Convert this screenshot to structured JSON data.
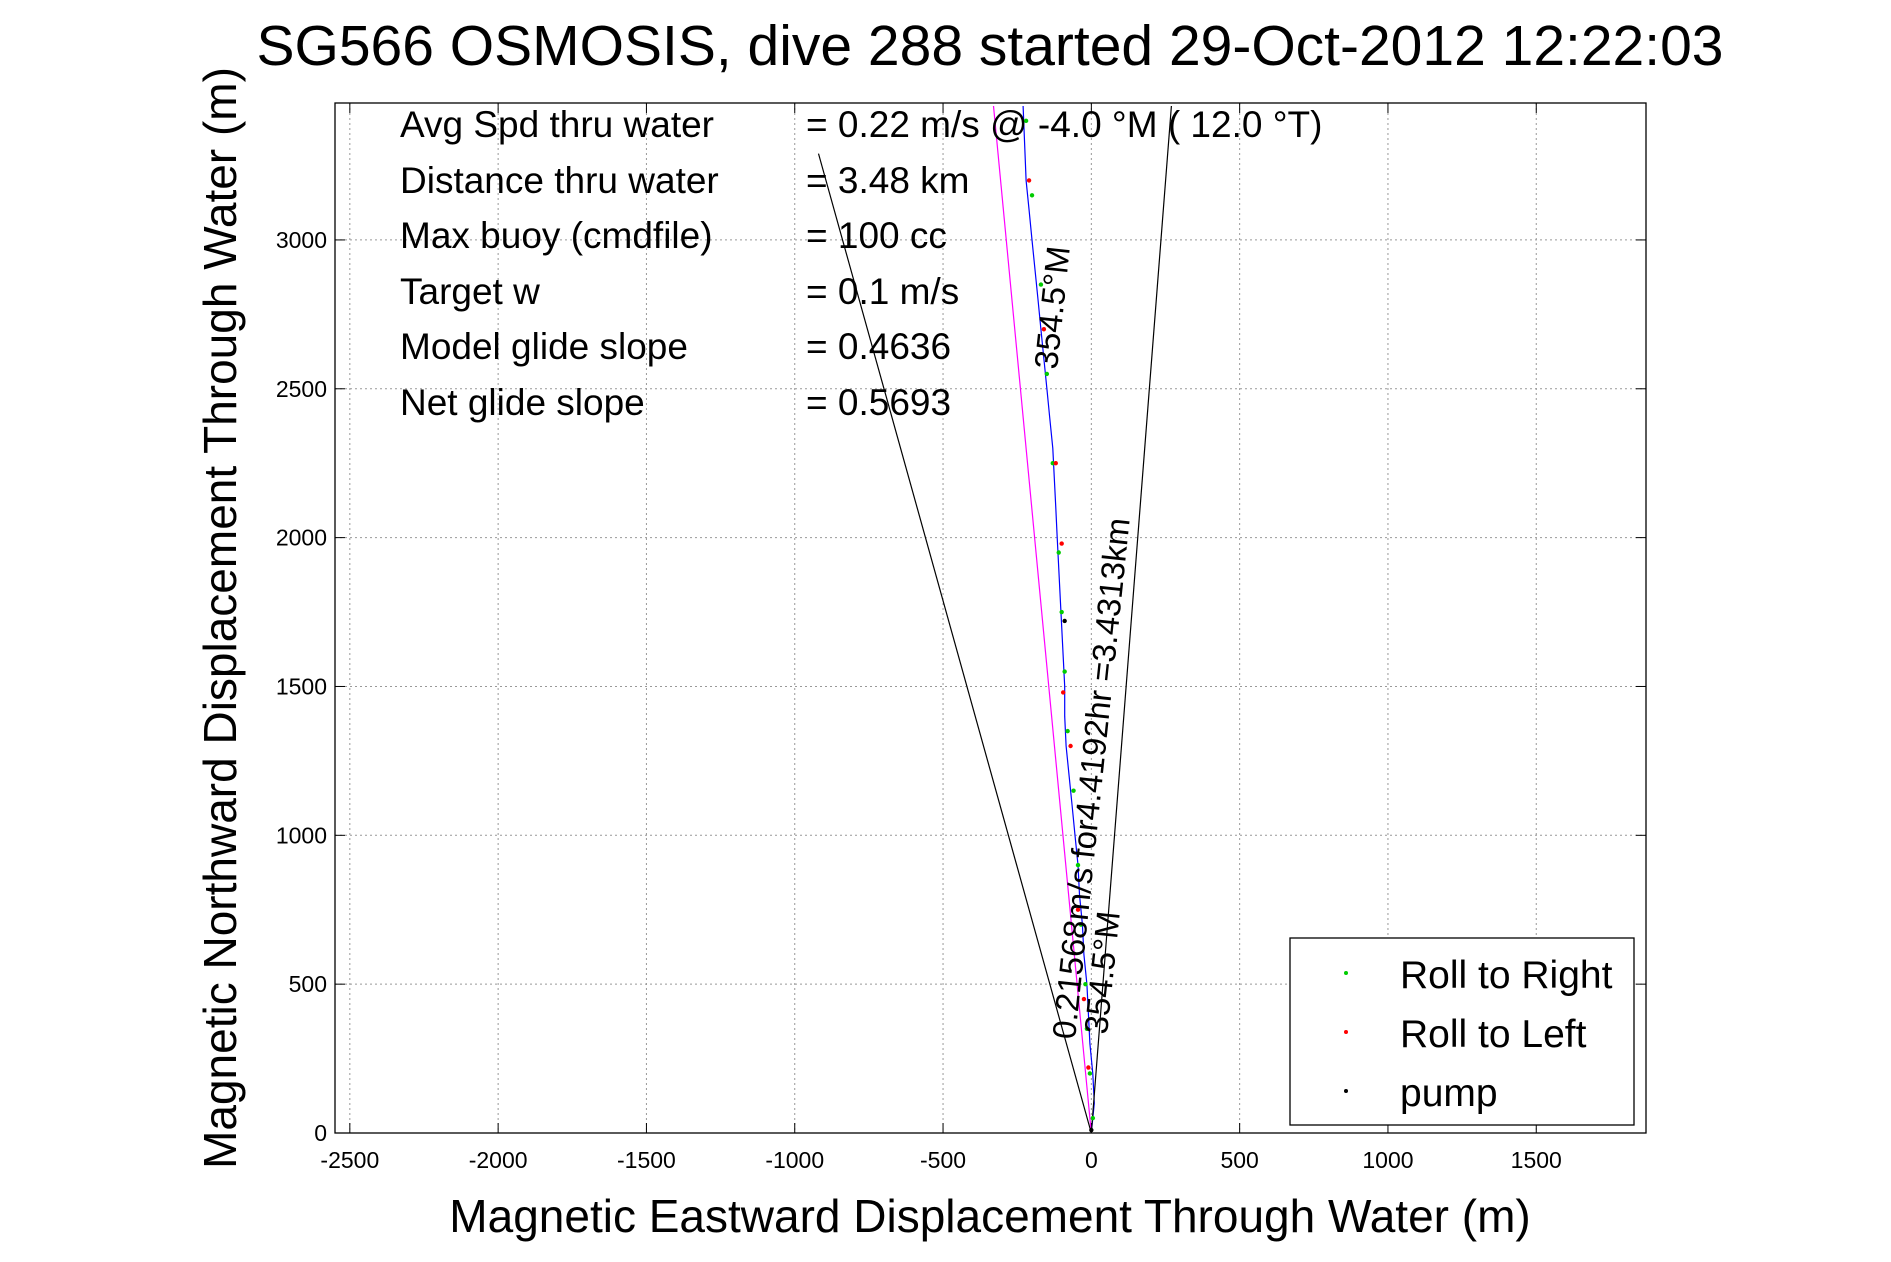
{
  "chart_data": {
    "type": "line",
    "title": "SG566 OSMOSIS, dive 288 started 29-Oct-2012 12:22:03",
    "xlabel": "Magnetic Eastward Displacement Through Water (m)",
    "ylabel": "Magnetic Northward Displacement Through Water (m)",
    "xlim": [
      -2550,
      1870
    ],
    "ylim": [
      0,
      3460
    ],
    "xticks": [
      -2500,
      -2000,
      -1500,
      -1000,
      -500,
      0,
      500,
      1000,
      1500
    ],
    "yticks": [
      0,
      500,
      1000,
      1500,
      2000,
      2500,
      3000
    ],
    "grid": true,
    "info": [
      {
        "label": "Avg Spd thru water",
        "value": "=  0.22 m/s @  -4.0 °M ( 12.0 °T)"
      },
      {
        "label": "Distance thru water",
        "value": "=  3.48 km"
      },
      {
        "label": "Max buoy (cmdfile)",
        "value": "= 100 cc"
      },
      {
        "label": "Target w",
        "value": "= 0.1 m/s"
      },
      {
        "label": "Model glide slope",
        "value": "= 0.4636"
      },
      {
        "label": "Net glide slope",
        "value": "= 0.5693"
      }
    ],
    "annotations": [
      "0.21568m/s for4.4192hr =3.4313km",
      "354.5°M",
      "354.5°M"
    ],
    "legend": {
      "placement": "bottom-right",
      "entries": [
        {
          "name": "Roll to Right",
          "color": "#00cc00"
        },
        {
          "name": "Roll to Left",
          "color": "#ff0000"
        },
        {
          "name": "pump",
          "color": "#000000"
        }
      ]
    },
    "series": [
      {
        "color": "#0000ff",
        "x": [
          0,
          10,
          5,
          -5,
          -10,
          -15,
          -25,
          -30,
          -40,
          -45,
          -55,
          -65,
          -75,
          -85,
          -90,
          -90,
          -95,
          -100,
          -105,
          -110,
          -115,
          -120,
          -125,
          -130,
          -140,
          -150,
          -160,
          -170,
          -180,
          -190,
          -200,
          -210,
          -220,
          -230
        ],
        "y": [
          0,
          100,
          200,
          300,
          400,
          500,
          600,
          700,
          800,
          900,
          1000,
          1100,
          1200,
          1300,
          1400,
          1500,
          1600,
          1700,
          1800,
          1900,
          2000,
          2100,
          2200,
          2300,
          2400,
          2500,
          2600,
          2700,
          2800,
          2900,
          3000,
          3100,
          3200,
          3450
        ]
      },
      {
        "color": "#ff00ff",
        "x": [
          0,
          -330
        ],
        "y": [
          0,
          3450
        ]
      },
      {
        "color": "#000000",
        "x": [
          0,
          270
        ],
        "y": [
          0,
          3450
        ]
      },
      {
        "color": "#000000",
        "x": [
          0,
          -920
        ],
        "y": [
          0,
          3290
        ]
      },
      {
        "color": "#00cc00",
        "type": "scatter",
        "x": [
          5,
          -5,
          -15,
          -20,
          -35,
          -45,
          -60,
          -80,
          -90,
          -100,
          -110,
          -130,
          -150,
          -170,
          -200,
          -220
        ],
        "y": [
          50,
          200,
          350,
          500,
          700,
          900,
          1150,
          1350,
          1550,
          1750,
          1950,
          2250,
          2550,
          2850,
          3150,
          3400
        ]
      },
      {
        "color": "#ff0000",
        "type": "scatter",
        "x": [
          -10,
          -25,
          -45,
          -70,
          -95,
          -100,
          -120,
          -160,
          -210
        ],
        "y": [
          220,
          450,
          750,
          1300,
          1480,
          1980,
          2250,
          2700,
          3200
        ]
      },
      {
        "color": "#000000",
        "type": "scatter",
        "x": [
          0,
          -90
        ],
        "y": [
          10,
          1720
        ]
      }
    ]
  }
}
